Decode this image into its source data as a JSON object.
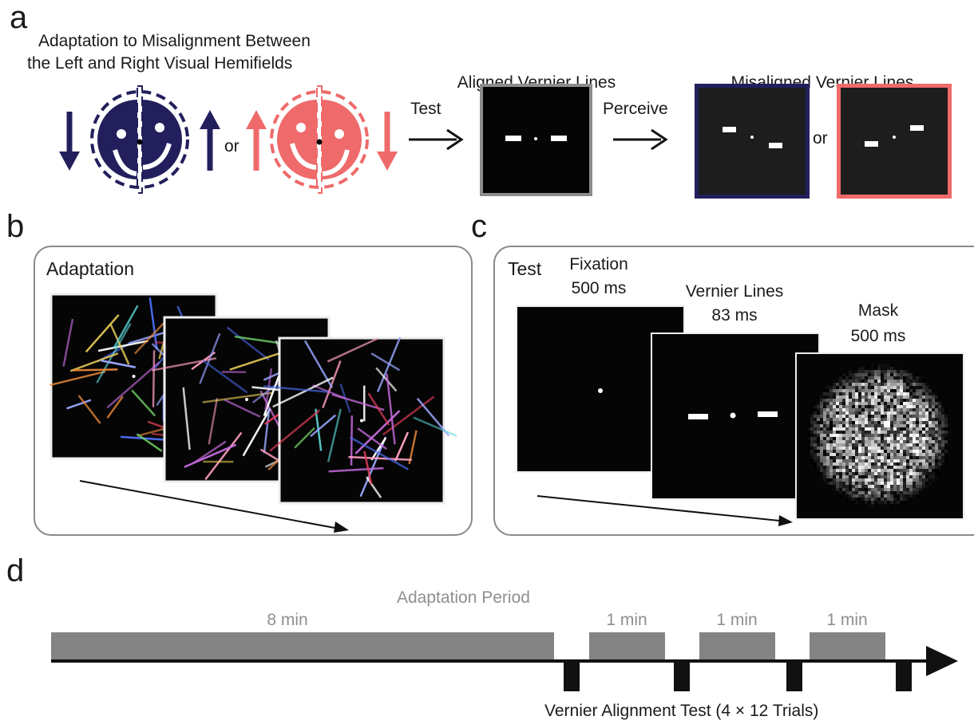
{
  "colors": {
    "navy": "#221f5c",
    "salmon": "#ef6a6a",
    "gray_bar": "#848484",
    "black": "#0a0a0a"
  },
  "panels": {
    "a": "a",
    "b": "b",
    "c": "c",
    "d": "d"
  },
  "panel_a": {
    "title_line1": "Adaptation to Misalignment Between",
    "title_line2": "the Left and Right Visual Hemifields",
    "or_1": "or",
    "test_label": "Test",
    "aligned_title": "Aligned Vernier Lines",
    "perceive_label": "Perceive",
    "misaligned_title": "Misaligned Vernier Lines",
    "or_2": "or"
  },
  "panel_b": {
    "label": "Adaptation"
  },
  "panel_c": {
    "label": "Test",
    "fixation_line1": "Fixation",
    "fixation_line2": "500 ms",
    "vernier_line1": "Vernier Lines",
    "vernier_line2": "83 ms",
    "mask_line1": "Mask",
    "mask_line2": "500 ms"
  },
  "panel_d": {
    "period_label": "Adaptation Period",
    "first_block": "8 min",
    "blocks": [
      "1 min",
      "1 min",
      "1 min"
    ],
    "test_label": "Vernier Alignment Test (4 × 12 Trials)"
  }
}
